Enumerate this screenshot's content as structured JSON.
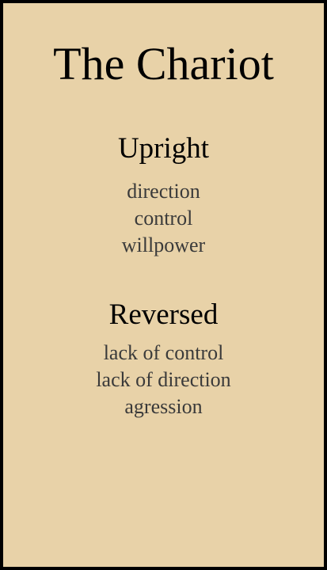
{
  "card": {
    "title": "The Chariot",
    "upright": {
      "heading": "Upright",
      "meanings": [
        "direction",
        "control",
        "willpower"
      ]
    },
    "reversed": {
      "heading": "Reversed",
      "meanings": [
        "lack of control",
        "lack of direction",
        "agression"
      ]
    },
    "colors": {
      "background": "#e8d2a8",
      "border": "#000000",
      "text": "#3a3a3a"
    }
  }
}
